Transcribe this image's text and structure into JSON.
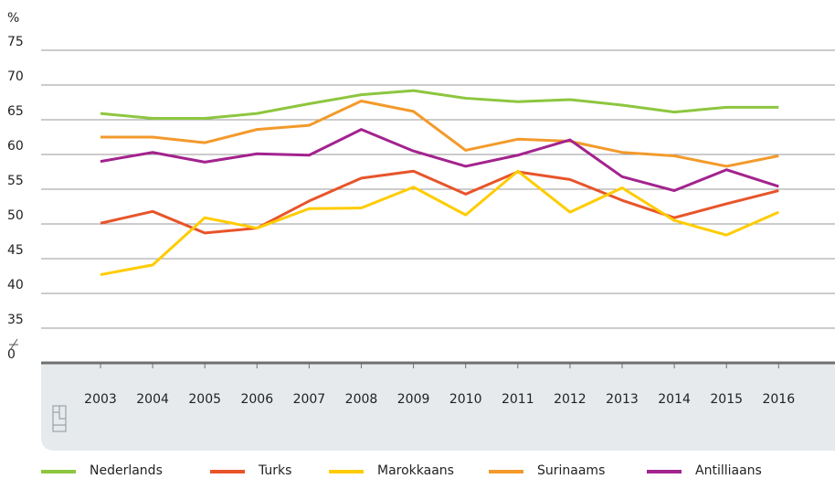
{
  "chart_data": {
    "type": "line",
    "y_label": "%",
    "categories": [
      "2003",
      "2004",
      "2005",
      "2006",
      "2007",
      "2008",
      "2009",
      "2010",
      "2011",
      "2012",
      "2013",
      "2014",
      "2015",
      "2016"
    ],
    "series": [
      {
        "name": "Nederlands",
        "color": "#8dc63f",
        "values": [
          65.9,
          65.2,
          65.2,
          65.9,
          67.3,
          68.6,
          69.2,
          68.1,
          67.6,
          67.9,
          67.1,
          66.1,
          66.8,
          66.8
        ]
      },
      {
        "name": "Turks",
        "color": "#e8542a",
        "values": [
          50.1,
          51.8,
          48.7,
          49.4,
          53.3,
          56.6,
          57.6,
          54.3,
          57.5,
          56.4,
          53.4,
          50.9,
          52.9,
          54.8
        ]
      },
      {
        "name": "Marokkaans",
        "color": "#ffcc00",
        "values": [
          42.7,
          44.1,
          50.9,
          49.4,
          52.2,
          52.3,
          55.3,
          51.3,
          57.6,
          51.7,
          55.2,
          50.5,
          48.4,
          51.7
        ]
      },
      {
        "name": "Surinaams",
        "color": "#f39a2b",
        "values": [
          62.5,
          62.5,
          61.7,
          63.6,
          64.2,
          67.7,
          66.2,
          60.6,
          62.2,
          61.9,
          60.3,
          59.8,
          58.3,
          59.8
        ]
      },
      {
        "name": "Antilliaans",
        "color": "#a3238e",
        "values": [
          59.0,
          60.3,
          58.9,
          60.1,
          59.9,
          63.6,
          60.5,
          58.3,
          59.9,
          62.1,
          56.8,
          54.8,
          57.8,
          55.4
        ]
      }
    ],
    "ylim": [
      0,
      75
    ],
    "yticks": [
      0,
      35,
      40,
      45,
      50,
      55,
      60,
      65,
      70,
      75
    ],
    "axis_break": true,
    "grid": true
  }
}
